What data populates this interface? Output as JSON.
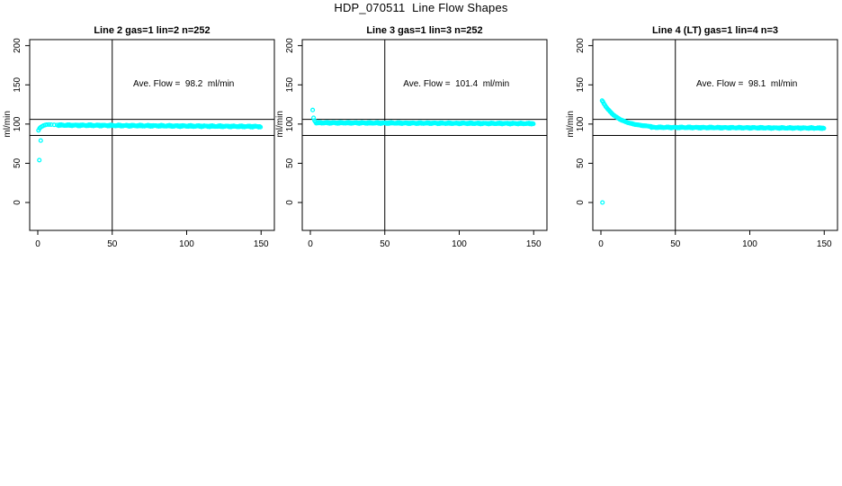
{
  "page": {
    "title": "HDP_070511  Line Flow Shapes"
  },
  "chart_data": {
    "type": "scatter",
    "title": "HDP_070511  Line Flow Shapes",
    "point_color": "#00FFFF",
    "axis_color": "#000000",
    "background": "#FFFFFF",
    "ylabel": "ml/min",
    "x_ticks": [
      0,
      50,
      100,
      150
    ],
    "y_ticks": [
      0,
      50,
      100,
      150,
      200
    ],
    "x_range": [
      -6,
      160
    ],
    "y_range": [
      -36,
      208
    ],
    "grid": false,
    "legend": "none",
    "ref_lines": {
      "vertical_x": 50,
      "horizontal_upper": 106,
      "horizontal_lower": 85.5
    },
    "annotation_anchor": {
      "x": 98,
      "y": 148
    },
    "panels": [
      {
        "title": "Line 2 gas=1 lin=2 n=252",
        "annotation": "Ave. Flow =  98.2  ml/min",
        "ave_flow": 98.2,
        "n": 252,
        "outliers": [
          [
            1,
            54
          ],
          [
            2,
            79
          ]
        ],
        "lead_points": [
          [
            0.5,
            92
          ],
          [
            1.2,
            94.5
          ],
          [
            2,
            96
          ],
          [
            3,
            97.2
          ],
          [
            4,
            98.2
          ],
          [
            5,
            98.8
          ],
          [
            6,
            99.2
          ],
          [
            7.5,
            99.4
          ],
          [
            9,
            99.3
          ],
          [
            11,
            99.0
          ],
          [
            13,
            98.8
          ]
        ],
        "plateau": {
          "x_start": 14,
          "x_end": 150,
          "step": 0.6,
          "y_start": 98.6,
          "y_end": 96.8,
          "jitter": 0.9
        }
      },
      {
        "title": "Line 3 gas=1 lin=3 n=252",
        "annotation": "Ave. Flow =  101.4  ml/min",
        "ave_flow": 101.4,
        "n": 252,
        "outliers": [
          [
            1.6,
            118
          ]
        ],
        "lead_points": [
          [
            2.2,
            108
          ],
          [
            2.8,
            104.5
          ],
          [
            3.4,
            102.8
          ]
        ],
        "plateau": {
          "x_start": 4,
          "x_end": 150,
          "step": 0.6,
          "y_start": 101.6,
          "y_end": 100.6,
          "jitter": 0.8
        }
      },
      {
        "title": "Line 4 (LT) gas=1 lin=4 n=3",
        "annotation": "Ave. Flow =  98.1  ml/min",
        "ave_flow": 98.1,
        "n": 3,
        "outliers": [
          [
            1,
            0
          ]
        ],
        "decay": {
          "x_start": 0.8,
          "x_end": 34,
          "step": 0.6,
          "start": 130,
          "plateau": 95.8,
          "tau": 10
        },
        "plateau": {
          "x_start": 34,
          "x_end": 150,
          "step": 0.6,
          "y_start": 95.8,
          "y_end": 94.8,
          "jitter": 0.8
        }
      }
    ]
  }
}
